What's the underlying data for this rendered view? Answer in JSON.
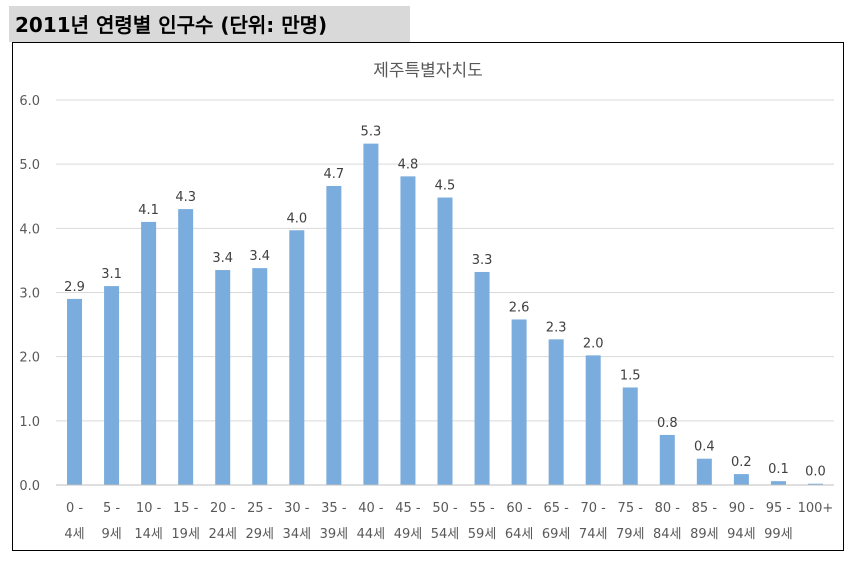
{
  "header": {
    "title": "2011년 연령별 인구수 (단위: 만명)"
  },
  "chart_data": {
    "type": "bar",
    "title": "제주특별자치도",
    "xlabel": "",
    "ylabel": "",
    "ylim": [
      0,
      6
    ],
    "yticks": [
      "0.0",
      "1.0",
      "2.0",
      "3.0",
      "4.0",
      "5.0",
      "6.0"
    ],
    "grid": true,
    "bar_color": "#7aaddd",
    "categories": [
      [
        "0 -",
        "4세"
      ],
      [
        "5 -",
        "9세"
      ],
      [
        "10 -",
        "14세"
      ],
      [
        "15 -",
        "19세"
      ],
      [
        "20 -",
        "24세"
      ],
      [
        "25 -",
        "29세"
      ],
      [
        "30 -",
        "34세"
      ],
      [
        "35 -",
        "39세"
      ],
      [
        "40 -",
        "44세"
      ],
      [
        "45 -",
        "49세"
      ],
      [
        "50 -",
        "54세"
      ],
      [
        "55 -",
        "59세"
      ],
      [
        "60 -",
        "64세"
      ],
      [
        "65 -",
        "69세"
      ],
      [
        "70 -",
        "74세"
      ],
      [
        "75 -",
        "79세"
      ],
      [
        "80 -",
        "84세"
      ],
      [
        "85 -",
        "89세"
      ],
      [
        "90 -",
        "94세"
      ],
      [
        "95 -",
        "99세"
      ],
      [
        "100+",
        ""
      ]
    ],
    "values": [
      2.9,
      3.1,
      4.1,
      4.3,
      3.35,
      3.38,
      3.97,
      4.66,
      5.32,
      4.81,
      4.48,
      3.32,
      2.58,
      2.27,
      2.02,
      1.52,
      0.78,
      0.41,
      0.17,
      0.06,
      0.02
    ],
    "data_labels": [
      "2.9",
      "3.1",
      "4.1",
      "4.3",
      "3.4",
      "3.4",
      "4.0",
      "4.7",
      "5.3",
      "4.8",
      "4.5",
      "3.3",
      "2.6",
      "2.3",
      "2.0",
      "1.5",
      "0.8",
      "0.4",
      "0.2",
      "0.1",
      "0.0"
    ]
  }
}
